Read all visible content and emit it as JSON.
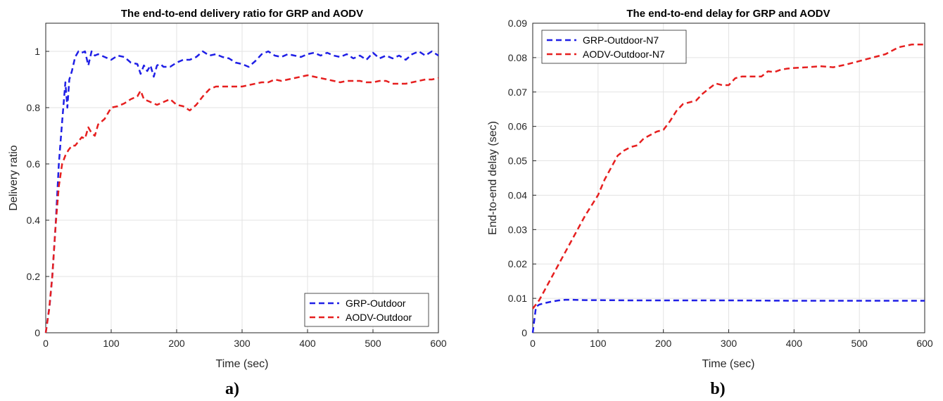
{
  "chart_data": [
    {
      "type": "line",
      "panel_label": "a)",
      "title": "The end-to-end delivery ratio for GRP and AODV",
      "xlabel": "Time (sec)",
      "ylabel": "Delivery ratio",
      "xlim": [
        0,
        600
      ],
      "ylim": [
        0,
        1.1
      ],
      "xticks": [
        0,
        100,
        200,
        300,
        400,
        500,
        600
      ],
      "xtick_labels": [
        "0",
        "100",
        "200",
        "300",
        "400",
        "500",
        "600"
      ],
      "yticks": [
        0,
        0.2,
        0.4,
        0.6,
        0.8,
        1
      ],
      "ytick_labels": [
        "0",
        "0.2",
        "0.4",
        "0.6",
        "0.8",
        "1"
      ],
      "grid": true,
      "legend_position": "bottom-right",
      "series": [
        {
          "name": "GRP-Outdoor",
          "color": "#1f1fe6",
          "style": "dashed",
          "x": [
            0,
            6,
            10,
            15,
            20,
            25,
            30,
            33,
            36,
            40,
            45,
            50,
            55,
            60,
            65,
            70,
            75,
            80,
            90,
            100,
            110,
            120,
            130,
            140,
            145,
            150,
            155,
            160,
            165,
            170,
            175,
            180,
            190,
            200,
            210,
            220,
            230,
            240,
            250,
            260,
            270,
            280,
            290,
            300,
            310,
            320,
            330,
            340,
            350,
            360,
            370,
            380,
            390,
            400,
            410,
            420,
            430,
            440,
            450,
            460,
            470,
            480,
            490,
            500,
            510,
            520,
            530,
            540,
            550,
            560,
            570,
            580,
            590,
            600
          ],
          "y": [
            0,
            0.1,
            0.2,
            0.38,
            0.6,
            0.75,
            0.89,
            0.8,
            0.9,
            0.93,
            0.98,
            1.0,
            0.995,
            1.0,
            0.95,
            1.0,
            0.985,
            0.99,
            0.98,
            0.97,
            0.985,
            0.98,
            0.96,
            0.955,
            0.92,
            0.95,
            0.93,
            0.95,
            0.91,
            0.95,
            0.955,
            0.945,
            0.945,
            0.96,
            0.97,
            0.97,
            0.98,
            1.0,
            0.985,
            0.99,
            0.98,
            0.975,
            0.96,
            0.955,
            0.945,
            0.965,
            0.99,
            1.0,
            0.985,
            0.98,
            0.99,
            0.985,
            0.98,
            0.99,
            0.995,
            0.985,
            0.995,
            0.985,
            0.98,
            0.99,
            0.975,
            0.985,
            0.97,
            0.995,
            0.975,
            0.985,
            0.975,
            0.985,
            0.97,
            0.99,
            1.0,
            0.985,
            1.0,
            0.985
          ]
        },
        {
          "name": "AODV-Outdoor",
          "color": "#e61f1f",
          "style": "dashed",
          "x": [
            0,
            5,
            10,
            15,
            20,
            25,
            30,
            35,
            40,
            45,
            50,
            55,
            60,
            65,
            70,
            75,
            80,
            90,
            100,
            110,
            120,
            130,
            140,
            145,
            150,
            160,
            170,
            180,
            190,
            200,
            210,
            220,
            230,
            240,
            250,
            260,
            270,
            280,
            290,
            300,
            310,
            320,
            330,
            340,
            350,
            360,
            370,
            380,
            390,
            400,
            410,
            420,
            430,
            440,
            450,
            460,
            470,
            480,
            490,
            500,
            510,
            520,
            530,
            540,
            550,
            560,
            570,
            580,
            590,
            600
          ],
          "y": [
            0,
            0.08,
            0.2,
            0.38,
            0.52,
            0.6,
            0.63,
            0.65,
            0.665,
            0.665,
            0.68,
            0.695,
            0.69,
            0.73,
            0.71,
            0.7,
            0.74,
            0.76,
            0.8,
            0.805,
            0.815,
            0.83,
            0.84,
            0.86,
            0.83,
            0.82,
            0.81,
            0.82,
            0.83,
            0.81,
            0.805,
            0.79,
            0.81,
            0.84,
            0.865,
            0.875,
            0.875,
            0.875,
            0.875,
            0.875,
            0.88,
            0.885,
            0.89,
            0.89,
            0.9,
            0.895,
            0.9,
            0.905,
            0.91,
            0.915,
            0.91,
            0.905,
            0.9,
            0.895,
            0.89,
            0.895,
            0.895,
            0.895,
            0.89,
            0.89,
            0.895,
            0.895,
            0.885,
            0.885,
            0.885,
            0.89,
            0.895,
            0.9,
            0.9,
            0.905
          ]
        }
      ]
    },
    {
      "type": "line",
      "panel_label": "b)",
      "title": "The end-to-end delay for GRP and AODV",
      "xlabel": "Time (sec)",
      "ylabel": "End-to-end delay (sec)",
      "xlim": [
        0,
        600
      ],
      "ylim": [
        0,
        0.09
      ],
      "xticks": [
        0,
        100,
        200,
        300,
        400,
        500,
        600
      ],
      "xtick_labels": [
        "0",
        "100",
        "200",
        "300",
        "400",
        "500",
        "600"
      ],
      "yticks": [
        0,
        0.01,
        0.02,
        0.03,
        0.04,
        0.05,
        0.06,
        0.07,
        0.08,
        0.09
      ],
      "ytick_labels": [
        "0",
        "0.01",
        "0.02",
        "0.03",
        "0.04",
        "0.05",
        "0.06",
        "0.07",
        "0.08",
        "0.09"
      ],
      "grid": true,
      "legend_position": "top-left",
      "series": [
        {
          "name": "GRP-Outdoor-N7",
          "color": "#1f1fe6",
          "style": "dashed",
          "x": [
            0,
            5,
            10,
            20,
            30,
            40,
            50,
            60,
            80,
            100,
            150,
            200,
            300,
            400,
            500,
            600
          ],
          "y": [
            0,
            0.0075,
            0.0082,
            0.0087,
            0.0091,
            0.0094,
            0.0096,
            0.0096,
            0.0095,
            0.0095,
            0.0094,
            0.0094,
            0.0094,
            0.0093,
            0.0093,
            0.0093
          ]
        },
        {
          "name": "AODV-Outdoor-N7",
          "color": "#e61f1f",
          "style": "dashed",
          "x": [
            0,
            10,
            20,
            40,
            60,
            80,
            100,
            110,
            120,
            130,
            140,
            150,
            160,
            170,
            180,
            190,
            200,
            210,
            220,
            230,
            240,
            250,
            260,
            270,
            280,
            290,
            300,
            310,
            320,
            330,
            340,
            350,
            360,
            370,
            380,
            390,
            400,
            420,
            440,
            460,
            480,
            500,
            520,
            540,
            560,
            580,
            600
          ],
          "y": [
            0.007,
            0.0095,
            0.013,
            0.02,
            0.027,
            0.034,
            0.04,
            0.0445,
            0.048,
            0.0515,
            0.053,
            0.054,
            0.0545,
            0.0565,
            0.0575,
            0.0585,
            0.059,
            0.0615,
            0.0645,
            0.0665,
            0.067,
            0.0675,
            0.0695,
            0.071,
            0.0725,
            0.072,
            0.072,
            0.074,
            0.0745,
            0.0745,
            0.0745,
            0.0745,
            0.076,
            0.0758,
            0.0765,
            0.0768,
            0.077,
            0.0772,
            0.0775,
            0.0772,
            0.078,
            0.079,
            0.08,
            0.081,
            0.083,
            0.0838,
            0.0838
          ]
        }
      ]
    }
  ]
}
